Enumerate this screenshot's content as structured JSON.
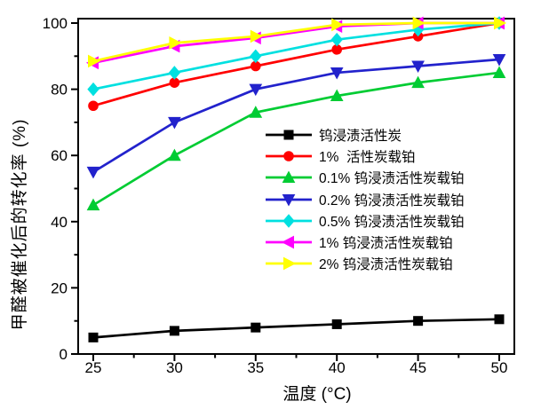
{
  "figure": {
    "background": "#FFFFFF",
    "frame_color": "#000000"
  },
  "chart_data": {
    "type": "line",
    "title": "",
    "xlabel": "温度 (°C)",
    "ylabel": "甲醛被催化后的转化率 (%)",
    "x": [
      25,
      30,
      35,
      40,
      45,
      50
    ],
    "x_ticks": [
      "25",
      "30",
      "35",
      "40",
      "45",
      "50"
    ],
    "y_ticks": [
      "0",
      "20",
      "40",
      "60",
      "80",
      "100"
    ],
    "x_minor_ticks": [
      27.5,
      32.5,
      37.5,
      42.5,
      47.5
    ],
    "y_minor_ticks": [
      10,
      30,
      50,
      70,
      90
    ],
    "xlim": [
      24,
      51
    ],
    "ylim": [
      0,
      102
    ],
    "grid": false,
    "legend_position": "center-right-inside",
    "series": [
      {
        "label": "钨浸渍活性炭",
        "color": "#000000",
        "marker": "square",
        "values": [
          5,
          7,
          8,
          9,
          10,
          10.5
        ]
      },
      {
        "label": "1%  活性炭载铂",
        "color": "#FF0000",
        "marker": "circle",
        "values": [
          75,
          82,
          87,
          92,
          96,
          100
        ]
      },
      {
        "label": "0.1% 钨浸渍活性炭载铂",
        "color": "#00CC33",
        "marker": "triangle-up",
        "values": [
          45,
          60,
          73,
          78,
          82,
          85
        ]
      },
      {
        "label": "0.2% 钨浸渍活性炭载铂",
        "color": "#2222CC",
        "marker": "triangle-down",
        "values": [
          55,
          70,
          80,
          85,
          87,
          89
        ]
      },
      {
        "label": "0.5% 钨浸渍活性炭载铂",
        "color": "#00E0E0",
        "marker": "diamond",
        "values": [
          80,
          85,
          90,
          95,
          98,
          100
        ]
      },
      {
        "label": "1% 钨浸渍活性炭载铂",
        "color": "#FF00FF",
        "marker": "triangle-left",
        "values": [
          88,
          93,
          95.5,
          99,
          100,
          100
        ]
      },
      {
        "label": "2% 钨浸渍活性炭载铂",
        "color": "#FFFF00",
        "marker": "triangle-right",
        "values": [
          88.5,
          94,
          96,
          99.5,
          100,
          100
        ]
      }
    ]
  }
}
